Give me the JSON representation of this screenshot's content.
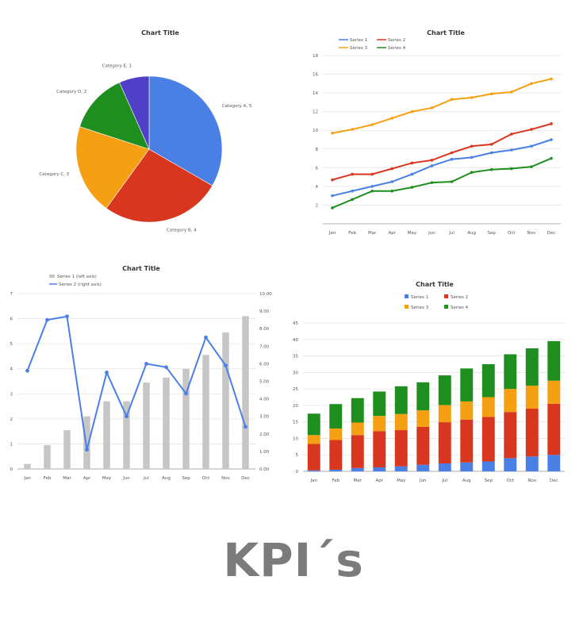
{
  "caption": "KPI´s",
  "colors": {
    "blue": "#4a7fe6",
    "red": "#d9361f",
    "orange": "#f5a012",
    "green": "#1e8e1e",
    "purple": "#5040c8",
    "gray": "#c6c6c6"
  },
  "chart_data": [
    {
      "type": "pie",
      "title": "Chart Title",
      "labels": [
        "Category A, 5",
        "Category B, 4",
        "Category C, 3",
        "Category D, 2",
        "Category E, 1"
      ],
      "values": [
        5,
        4,
        3,
        2,
        1
      ]
    },
    {
      "type": "line",
      "title": "Chart Title",
      "categories": [
        "Jan",
        "Feb",
        "Mar",
        "Apr",
        "May",
        "Jun",
        "Jul",
        "Aug",
        "Sep",
        "Oct",
        "Nov",
        "Dec"
      ],
      "ylim": [
        0,
        18
      ],
      "yticks": [
        "2",
        "4",
        "6",
        "8",
        "10",
        "12",
        "14",
        "16",
        "18"
      ],
      "legend": "top-left",
      "series": [
        {
          "name": "Series 1",
          "values": [
            3.0,
            3.5,
            4.0,
            4.5,
            5.3,
            6.2,
            6.9,
            7.1,
            7.6,
            7.9,
            8.3,
            9.0
          ]
        },
        {
          "name": "Series 2",
          "values": [
            4.7,
            5.3,
            5.3,
            5.9,
            6.5,
            6.8,
            7.6,
            8.3,
            8.5,
            9.6,
            10.1,
            10.7
          ]
        },
        {
          "name": "Series 3",
          "values": [
            9.7,
            10.1,
            10.6,
            11.3,
            12.0,
            12.4,
            13.3,
            13.5,
            13.9,
            14.1,
            15.0,
            15.5
          ]
        },
        {
          "name": "Series 4",
          "values": [
            1.7,
            2.6,
            3.5,
            3.5,
            3.9,
            4.4,
            4.5,
            5.5,
            5.8,
            5.9,
            6.1,
            7.0
          ]
        }
      ]
    },
    {
      "type": "bar",
      "title": "Chart Title",
      "categories": [
        "Jan",
        "Feb",
        "Mar",
        "Apr",
        "May",
        "Jun",
        "Jul",
        "Aug",
        "Sep",
        "Oct",
        "Nov",
        "Dec"
      ],
      "ylim_left": [
        0,
        7
      ],
      "ylim_right": [
        0,
        10
      ],
      "yticks_left": [
        "0",
        "1",
        "2",
        "3",
        "4",
        "5",
        "6",
        "7"
      ],
      "yticks_right": [
        "0.00",
        "1.00",
        "2.00",
        "3.00",
        "4.00",
        "5.00",
        "6.00",
        "7.00",
        "8.00",
        "9.00",
        "10.00"
      ],
      "legend": "top-left",
      "series": [
        {
          "name": "Series 1 (left axis)",
          "kind": "bar",
          "axis": "left",
          "values": [
            0.2,
            0.95,
            1.55,
            2.1,
            2.7,
            2.7,
            3.45,
            3.65,
            4.0,
            4.55,
            5.45,
            6.1
          ]
        },
        {
          "name": "Series 2 (right axis)",
          "kind": "line",
          "axis": "right",
          "values": [
            5.6,
            8.5,
            8.7,
            1.1,
            5.5,
            3.0,
            6.0,
            5.8,
            4.3,
            7.5,
            5.9,
            2.4
          ]
        }
      ]
    },
    {
      "type": "bar",
      "stacked": true,
      "title": "Chart Title",
      "categories": [
        "Jan",
        "Feb",
        "Mar",
        "Apr",
        "May",
        "Jun",
        "Jul",
        "Aug",
        "Sep",
        "Oct",
        "Nov",
        "Dec"
      ],
      "ylim": [
        0,
        45
      ],
      "yticks": [
        "0",
        "5",
        "10",
        "15",
        "20",
        "25",
        "30",
        "35",
        "40",
        "45"
      ],
      "legend": "top",
      "series": [
        {
          "name": "Series 1",
          "values": [
            0.3,
            0.5,
            1.0,
            1.2,
            1.5,
            2.0,
            2.4,
            2.7,
            3.0,
            4.0,
            4.5,
            5.0
          ]
        },
        {
          "name": "Series 2",
          "values": [
            8.0,
            9.0,
            10.0,
            11.0,
            11.0,
            11.5,
            12.5,
            13.0,
            13.5,
            14.0,
            14.5,
            15.5
          ]
        },
        {
          "name": "Series 3",
          "values": [
            2.7,
            3.5,
            3.8,
            4.6,
            4.9,
            5.0,
            5.2,
            5.5,
            6.0,
            7.0,
            7.0,
            7.0
          ]
        },
        {
          "name": "Series 4",
          "values": [
            6.5,
            7.4,
            7.4,
            7.4,
            8.4,
            8.5,
            9.0,
            10.0,
            10.0,
            10.5,
            11.3,
            12.0
          ]
        }
      ]
    }
  ]
}
